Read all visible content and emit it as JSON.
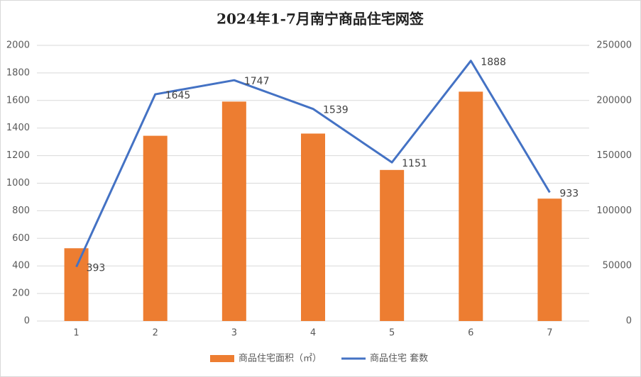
{
  "chart_data": {
    "type": "bar-line",
    "title": "2024年1-7月南宁商品住宅网签",
    "categories": [
      "1",
      "2",
      "3",
      "4",
      "5",
      "6",
      "7"
    ],
    "series": [
      {
        "name": "商品住宅面积（㎡）",
        "type": "bar",
        "axis": "y2",
        "color": "#ed7d31",
        "values": [
          66000,
          168000,
          199000,
          170000,
          137000,
          208000,
          111000
        ]
      },
      {
        "name": "商品住宅 套数",
        "type": "line",
        "axis": "y",
        "color": "#4472c4",
        "values": [
          393,
          1645,
          1747,
          1539,
          1151,
          1888,
          933
        ]
      }
    ],
    "ylim": [
      0,
      2000
    ],
    "yticks": [
      0,
      200,
      400,
      600,
      800,
      1000,
      1200,
      1400,
      1600,
      1800,
      2000
    ],
    "y2lim": [
      0,
      250000
    ],
    "y2ticks": [
      0,
      50000,
      100000,
      150000,
      200000,
      250000
    ],
    "grid": true,
    "legend": "bottom"
  }
}
